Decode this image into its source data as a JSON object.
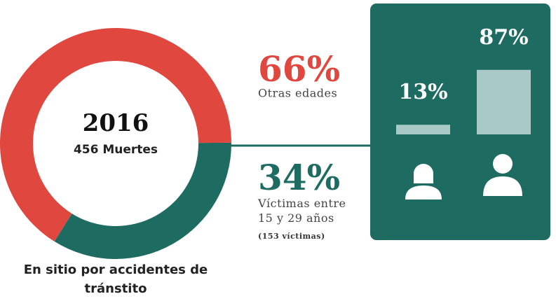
{
  "chart_data": [
    {
      "type": "pie",
      "donut": true,
      "center_title": "2016",
      "center_subtitle": "456 Muertes",
      "categories": [
        "Otras edades",
        "Víctimas entre 15 y 29 años"
      ],
      "values": [
        66,
        34
      ],
      "value_labels": [
        "66%",
        "34%"
      ],
      "colors": [
        "#e0473f",
        "#1e6b62"
      ],
      "note": "(153 víctimas)",
      "caption": "En sitio por accidentes de tránstito"
    },
    {
      "type": "bar",
      "categories": [
        null,
        null
      ],
      "values": [
        13,
        87
      ],
      "value_labels": [
        "13%",
        "87%"
      ],
      "color": "#a9c9c6",
      "ylim": [
        0,
        100
      ]
    }
  ]
}
